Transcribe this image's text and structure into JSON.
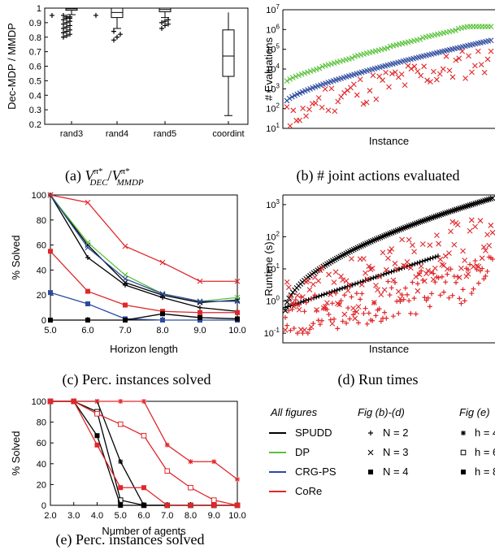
{
  "colors": {
    "SPUDD": "#000000",
    "DP": "#58c23a",
    "CRG-PS": "#2d4a9e",
    "CoRe": "#e0272a"
  },
  "legend": {
    "title_all": "All figures",
    "title_bd": "Fig (b)-(d)",
    "title_e": "Fig (e)",
    "methods": [
      "SPUDD",
      "DP",
      "CRG-PS",
      "CoRe"
    ],
    "markers_bd": [
      "N = 2",
      "N = 3",
      "N = 4"
    ],
    "markers_e": [
      "h = 4",
      "h = 6",
      "h = 8"
    ]
  },
  "chart_data": [
    {
      "id": "a",
      "type": "box",
      "caption_prefix": "(a) ",
      "caption_math_base": "V",
      "caption_math_sup": "π*",
      "caption_math_sub1": "DEC",
      "caption_math_sub2": "MMDP",
      "ylabel": "Dec-MDP / MMDP",
      "ylim": [
        0.2,
        1.0
      ],
      "yticks": [
        "0.2",
        "0.3",
        "0.4",
        "0.5",
        "0.6",
        "0.7",
        "0.8",
        "0.9",
        "1"
      ],
      "categories": [
        "rand3",
        "rand4",
        "rand5",
        "coordint"
      ],
      "boxes": [
        {
          "whisker_low": 0.955,
          "q1": 0.985,
          "median": 0.995,
          "q3": 1.0,
          "whisker_high": 1.0,
          "outliers": [
            0.8,
            0.81,
            0.82,
            0.83,
            0.84,
            0.85,
            0.86,
            0.87,
            0.88,
            0.89,
            0.9,
            0.91,
            0.92,
            0.93,
            0.94,
            0.95,
            0.94,
            0.93
          ]
        },
        {
          "whisker_low": 0.86,
          "q1": 0.935,
          "median": 0.97,
          "q3": 1.0,
          "whisker_high": 1.0,
          "outliers": [
            0.78,
            0.8,
            0.82,
            0.84
          ]
        },
        {
          "whisker_low": 0.935,
          "q1": 0.975,
          "median": 0.99,
          "q3": 1.0,
          "whisker_high": 1.0,
          "outliers": [
            0.86,
            0.88,
            0.89,
            0.9,
            0.91,
            0.92
          ]
        },
        {
          "whisker_low": 0.26,
          "q1": 0.53,
          "median": 0.67,
          "q3": 0.85,
          "whisker_high": 0.97,
          "outliers": []
        }
      ]
    },
    {
      "id": "b",
      "type": "scatter",
      "caption": "(b) # joint actions evaluated",
      "xlabel": "Instance",
      "ylabel": "# Evaluations",
      "yscale": "log",
      "ylim": [
        10,
        10000000
      ],
      "yticks": [
        "10^1",
        "10^2",
        "10^3",
        "10^4",
        "10^5",
        "10^6",
        "10^7"
      ],
      "series": [
        {
          "method": "DP",
          "log10_start": 3.4,
          "log10_end": 6.15,
          "count": 70
        },
        {
          "method": "CRG-PS",
          "log10_start": 2.4,
          "log10_end": 5.45,
          "count": 80
        },
        {
          "method": "CoRe",
          "log10_min": 1.0,
          "log10_max": 4.9,
          "count": 65
        }
      ]
    },
    {
      "id": "c",
      "type": "line",
      "caption": "(c) Perc. instances solved",
      "xlabel": "Horizon length",
      "ylabel": "% Solved",
      "xlim": [
        5,
        10
      ],
      "ylim": [
        0,
        100
      ],
      "xticks": [
        "5.0",
        "6.0",
        "7.0",
        "8.0",
        "9.0",
        "10.0"
      ],
      "yticks": [
        "0",
        "20",
        "40",
        "60",
        "80",
        "100"
      ],
      "x": [
        5,
        6,
        7,
        8,
        9,
        10
      ],
      "series": [
        {
          "method": "SPUDD",
          "marker": "plus",
          "values": [
            100,
            50,
            28,
            18,
            10,
            7
          ]
        },
        {
          "method": "SPUDD",
          "marker": "x",
          "values": [
            100,
            60,
            30,
            20,
            14,
            16
          ]
        },
        {
          "method": "DP",
          "marker": "x",
          "values": [
            100,
            62,
            36,
            21,
            15,
            18
          ]
        },
        {
          "method": "CRG-PS",
          "marker": "x",
          "values": [
            100,
            58,
            33,
            21,
            15,
            15
          ]
        },
        {
          "method": "CRG-PS",
          "marker": "square",
          "values": [
            22,
            13,
            1,
            0,
            0,
            0
          ]
        },
        {
          "method": "CoRe",
          "marker": "x",
          "values": [
            100,
            94,
            59,
            46,
            31,
            31
          ]
        },
        {
          "method": "CoRe",
          "marker": "square",
          "values": [
            55,
            23,
            12,
            7,
            6,
            6
          ]
        },
        {
          "method": "SPUDD",
          "marker": "square",
          "values": [
            0,
            0,
            0,
            5,
            2,
            1
          ]
        }
      ]
    },
    {
      "id": "d",
      "type": "scatter",
      "caption": "(d) Run times",
      "xlabel": "Instance",
      "ylabel": "Runtime (s)",
      "yscale": "log",
      "ylim": [
        0.1,
        2000
      ],
      "yticks": [
        "10^-1",
        "10^0",
        "10^1",
        "10^2",
        "10^3"
      ],
      "series": [
        {
          "method": "SPUDD",
          "marker": "x",
          "log10_start": -0.3,
          "log10_end": 3.2,
          "count": 110
        },
        {
          "method": "SPUDD",
          "marker": "plus",
          "log10_start": -0.2,
          "log10_end": 1.4,
          "count": 60
        },
        {
          "method": "CoRe",
          "marker": "x",
          "log10_min": -0.9,
          "log10_max": 3.0,
          "count": 120
        },
        {
          "method": "CoRe",
          "marker": "plus",
          "log10_min": -1.0,
          "log10_max": 2.2,
          "count": 120
        }
      ]
    },
    {
      "id": "e",
      "type": "line",
      "caption": "(e) Perc. instances solved",
      "xlabel": "Number of agents",
      "ylabel": "% Solved",
      "xlim": [
        2,
        10
      ],
      "ylim": [
        0,
        100
      ],
      "xticks": [
        "2.0",
        "3.0",
        "4.0",
        "5.0",
        "6.0",
        "7.0",
        "8.0",
        "9.0",
        "10.0"
      ],
      "yticks": [
        "0",
        "20",
        "40",
        "60",
        "80",
        "100"
      ],
      "x": [
        2,
        3,
        4,
        5,
        6,
        7,
        8,
        9,
        10
      ],
      "series": [
        {
          "method": "SPUDD",
          "marker": "asterisk",
          "values": [
            100,
            100,
            100,
            42,
            0,
            0,
            0,
            0,
            0
          ]
        },
        {
          "method": "SPUDD",
          "marker": "square-open",
          "values": [
            100,
            100,
            90,
            5,
            0,
            0,
            0,
            0,
            0
          ]
        },
        {
          "method": "SPUDD",
          "marker": "square",
          "values": [
            100,
            100,
            67,
            0,
            0,
            0,
            0,
            0,
            0
          ]
        },
        {
          "method": "CoRe",
          "marker": "asterisk",
          "values": [
            100,
            100,
            100,
            100,
            100,
            58,
            42,
            42,
            25
          ]
        },
        {
          "method": "CoRe",
          "marker": "square-open",
          "values": [
            100,
            100,
            88,
            78,
            67,
            33,
            17,
            5,
            0
          ]
        },
        {
          "method": "CoRe",
          "marker": "square",
          "values": [
            100,
            100,
            58,
            17,
            17,
            0,
            0,
            0,
            0
          ]
        }
      ]
    }
  ]
}
